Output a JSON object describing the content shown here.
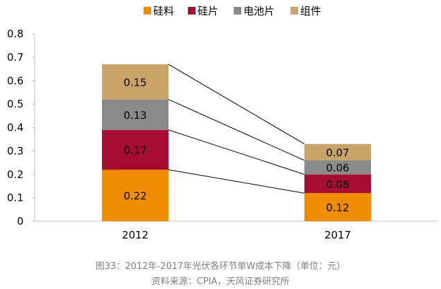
{
  "chart_data": {
    "type": "bar",
    "stacked": true,
    "categories": [
      "2012",
      "2017"
    ],
    "series": [
      {
        "name": "硅料",
        "color": "#f08c00",
        "values": [
          0.22,
          0.12
        ]
      },
      {
        "name": "硅片",
        "color": "#a50d33",
        "values": [
          0.17,
          0.08
        ]
      },
      {
        "name": "电池片",
        "color": "#8a8a8a",
        "values": [
          0.13,
          0.06
        ]
      },
      {
        "name": "组件",
        "color": "#c8a46b",
        "values": [
          0.15,
          0.07
        ]
      }
    ],
    "data_labels": [
      [
        "0.22",
        "0.12"
      ],
      [
        "0.17",
        "0.08"
      ],
      [
        "0.13",
        "0.06"
      ],
      [
        "0.15",
        "0.07"
      ]
    ],
    "y_ticks": [
      "0",
      "0.1",
      "0.2",
      "0.3",
      "0.4",
      "0.5",
      "0.6",
      "0.7",
      "0.8"
    ],
    "ylim": [
      0,
      0.8
    ],
    "legend_position": "top",
    "connector_lines": true,
    "grid": false
  },
  "caption": {
    "figure": "图33：2012年-2017年光伏各环节单W成本下降（单位：元）",
    "source": "资料来源：CPIA，天风证券研究所"
  }
}
